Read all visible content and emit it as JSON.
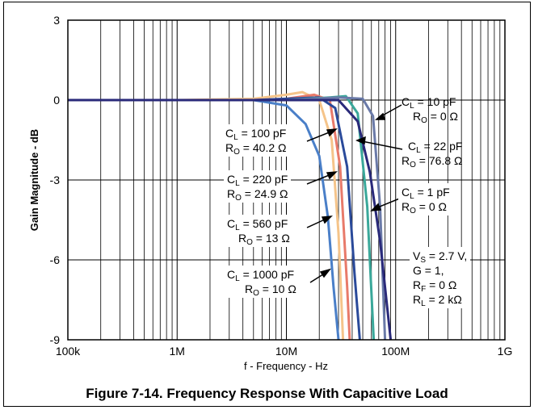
{
  "chart_data": {
    "type": "line",
    "title": "",
    "xlabel": "f - Frequency - Hz",
    "ylabel": "Gain Magnitude - dB",
    "x_scale": "log",
    "xlim": [
      100000,
      1000000000
    ],
    "ylim": [
      -9,
      3
    ],
    "x_ticks": [
      {
        "value": 100000,
        "label": "100k"
      },
      {
        "value": 1000000,
        "label": "1M"
      },
      {
        "value": 10000000,
        "label": "10M"
      },
      {
        "value": 100000000,
        "label": "100M"
      },
      {
        "value": 1000000000,
        "label": "1G"
      }
    ],
    "y_ticks": [
      {
        "value": 3,
        "label": "3"
      },
      {
        "value": 0,
        "label": "0"
      },
      {
        "value": -3,
        "label": "-3"
      },
      {
        "value": -6,
        "label": "-6"
      },
      {
        "value": -9,
        "label": "-9"
      }
    ],
    "grid": true,
    "series": [
      {
        "color": "#4a7fc8",
        "x": [
          100000,
          1000000,
          5000000,
          10000000,
          15000000,
          20000000,
          24000000,
          27000000,
          30000000
        ],
        "y": [
          0.0,
          0.0,
          0.0,
          -0.2,
          -0.9,
          -2.1,
          -4.4,
          -7.0,
          -9.0
        ]
      },
      {
        "color": "#f5c48a",
        "x": [
          100000,
          1000000,
          5000000,
          10000000,
          14000000,
          20000000,
          26000000,
          30000000,
          33000000
        ],
        "y": [
          0.0,
          0.0,
          0.05,
          0.2,
          0.3,
          0.0,
          -1.5,
          -5.0,
          -9.0
        ]
      },
      {
        "color": "#e87a6a",
        "x": [
          100000,
          1000000,
          5000000,
          10000000,
          18000000,
          25000000,
          31000000,
          36000000,
          38000000
        ],
        "y": [
          0.0,
          0.0,
          0.0,
          0.05,
          0.2,
          0.0,
          -2.5,
          -7.0,
          -9.0
        ]
      },
      {
        "color": "#2a4a9a",
        "x": [
          100000,
          1000000,
          5000000,
          10000000,
          20000000,
          28000000,
          36000000,
          42000000,
          47000000
        ],
        "y": [
          0.0,
          0.0,
          0.0,
          0.05,
          0.1,
          -0.3,
          -2.5,
          -6.5,
          -9.0
        ]
      },
      {
        "color": "#3aa89a",
        "x": [
          100000,
          1000000,
          5000000,
          10000000,
          25000000,
          35000000,
          45000000,
          55000000,
          63000000
        ],
        "y": [
          0.0,
          0.0,
          0.0,
          0.0,
          0.1,
          0.15,
          -0.5,
          -4.0,
          -9.0
        ]
      },
      {
        "color": "#6a7aa8",
        "x": [
          100000,
          1000000,
          5000000,
          10000000,
          30000000,
          50000000,
          62000000,
          72000000,
          80000000
        ],
        "y": [
          0.0,
          0.0,
          0.0,
          0.0,
          0.1,
          0.05,
          -0.6,
          -4.0,
          -9.0
        ]
      },
      {
        "color": "#2a2a7a",
        "x": [
          100000,
          1000000,
          5000000,
          10000000,
          30000000,
          45000000,
          58000000,
          72000000,
          90000000
        ],
        "y": [
          0.0,
          0.0,
          0.0,
          0.0,
          0.0,
          -0.8,
          -2.7,
          -5.3,
          -9.0
        ]
      }
    ],
    "annotations": [
      {
        "cl_value": "10 pF",
        "ro_value": "0 Ω"
      },
      {
        "cl_value": "22 pF",
        "ro_value": "76.8 Ω"
      },
      {
        "cl_value": "1 pF",
        "ro_value": "0 Ω"
      },
      {
        "cl_value": "100 pF",
        "ro_value": "40.2 Ω"
      },
      {
        "cl_value": "220 pF",
        "ro_value": "24.9 Ω"
      },
      {
        "cl_value": "560 pF",
        "ro_value": "13 Ω"
      },
      {
        "cl_value": "1000 pF",
        "ro_value": "10 Ω"
      }
    ],
    "conditions": {
      "vs_value": "2.7 V,",
      "gain_line": "G = 1,",
      "rf_value": "0 Ω",
      "rl_value": "2 kΩ"
    }
  },
  "caption": "Figure 7-14. Frequency Response With Capacitive Load"
}
